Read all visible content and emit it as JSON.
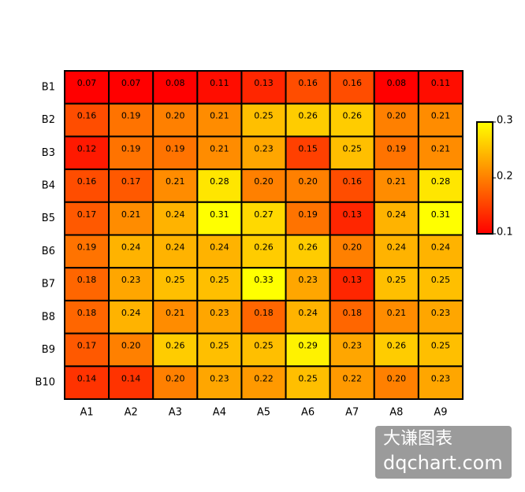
{
  "chart_data": {
    "type": "heatmap",
    "x": [
      "A1",
      "A2",
      "A3",
      "A4",
      "A5",
      "A6",
      "A7",
      "A8",
      "A9"
    ],
    "y": [
      "B1",
      "B2",
      "B3",
      "B4",
      "B5",
      "B6",
      "B7",
      "B8",
      "B9",
      "B10"
    ],
    "values": [
      [
        0.07,
        0.07,
        0.08,
        0.11,
        0.13,
        0.16,
        0.16,
        0.08,
        0.11
      ],
      [
        0.16,
        0.19,
        0.2,
        0.21,
        0.25,
        0.26,
        0.26,
        0.2,
        0.21
      ],
      [
        0.12,
        0.19,
        0.19,
        0.21,
        0.23,
        0.15,
        0.25,
        0.19,
        0.21
      ],
      [
        0.16,
        0.17,
        0.21,
        0.28,
        0.2,
        0.2,
        0.16,
        0.21,
        0.28
      ],
      [
        0.17,
        0.21,
        0.24,
        0.31,
        0.27,
        0.19,
        0.13,
        0.24,
        0.31
      ],
      [
        0.19,
        0.24,
        0.24,
        0.24,
        0.26,
        0.26,
        0.2,
        0.24,
        0.24
      ],
      [
        0.18,
        0.23,
        0.25,
        0.25,
        0.33,
        0.23,
        0.13,
        0.25,
        0.25
      ],
      [
        0.18,
        0.24,
        0.21,
        0.23,
        0.18,
        0.24,
        0.18,
        0.21,
        0.23
      ],
      [
        0.17,
        0.2,
        0.26,
        0.25,
        0.25,
        0.29,
        0.23,
        0.26,
        0.25
      ],
      [
        0.14,
        0.14,
        0.2,
        0.23,
        0.22,
        0.25,
        0.22,
        0.2,
        0.23
      ]
    ],
    "value_labels": [
      [
        "0.07",
        "0.07",
        "0.08",
        "0.11",
        "0.13",
        "0.16",
        "0.16",
        "0.08",
        "0.11"
      ],
      [
        "0.16",
        "0.19",
        "0.20",
        "0.21",
        "0.25",
        "0.26",
        "0.26",
        "0.20",
        "0.21"
      ],
      [
        "0.12",
        "0.19",
        "0.19",
        "0.21",
        "0.23",
        "0.15",
        "0.25",
        "0.19",
        "0.21"
      ],
      [
        "0.16",
        "0.17",
        "0.21",
        "0.28",
        "0.20",
        "0.20",
        "0.16",
        "0.21",
        "0.28"
      ],
      [
        "0.17",
        "0.21",
        "0.24",
        "0.31",
        "0.27",
        "0.19",
        "0.13",
        "0.24",
        "0.31"
      ],
      [
        "0.19",
        "0.24",
        "0.24",
        "0.24",
        "0.26",
        "0.26",
        "0.20",
        "0.24",
        "0.24"
      ],
      [
        "0.18",
        "0.23",
        "0.25",
        "0.25",
        "0.33",
        "0.23",
        "0.13",
        "0.25",
        "0.25"
      ],
      [
        "0.18",
        "0.24",
        "0.21",
        "0.23",
        "0.18",
        "0.24",
        "0.18",
        "0.21",
        "0.23"
      ],
      [
        "0.17",
        "0.20",
        "0.26",
        "0.25",
        "0.25",
        "0.29",
        "0.23",
        "0.26",
        "0.25"
      ],
      [
        "0.14",
        "0.14",
        "0.20",
        "0.23",
        "0.22",
        "0.25",
        "0.22",
        "0.20",
        "0.23"
      ]
    ],
    "colors": [
      "#ff0000",
      "#ffff00"
    ],
    "zlim": [
      0.1,
      0.3
    ],
    "zticks": [
      0.1,
      0.2,
      0.3
    ],
    "watermark": [
      "大谦图表",
      "dqchart.com"
    ]
  }
}
